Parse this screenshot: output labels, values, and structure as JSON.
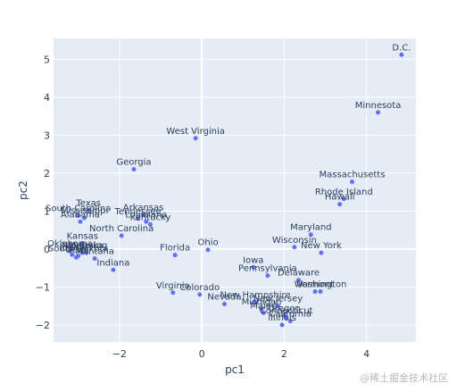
{
  "chart_data": {
    "type": "scatter",
    "xlabel": "pc1",
    "ylabel": "pc2",
    "xlim": [
      -3.6,
      5.2
    ],
    "ylim": [
      -2.45,
      5.55
    ],
    "x_ticks": [
      -2,
      0,
      2,
      4
    ],
    "y_ticks": [
      -2,
      -1,
      0,
      1,
      2,
      3,
      4,
      5
    ],
    "tick_labels_x": [
      "−2",
      "0",
      "2",
      "4"
    ],
    "tick_labels_y": [
      "−2",
      "−1",
      "0",
      "1",
      "2",
      "3",
      "4",
      "5"
    ],
    "grid": true,
    "colors": {
      "plot_bg": "#E5ECF6",
      "grid": "#ffffff",
      "marker": "#636EFA",
      "text": "#2A3F5F"
    },
    "points": [
      {
        "label": "D.C.",
        "x": 4.85,
        "y": 5.12
      },
      {
        "label": "Minnesota",
        "x": 4.28,
        "y": 3.6
      },
      {
        "label": "West Virginia",
        "x": -0.15,
        "y": 2.92
      },
      {
        "label": "Georgia",
        "x": -1.65,
        "y": 2.1
      },
      {
        "label": "Massachusetts",
        "x": 3.65,
        "y": 1.77
      },
      {
        "label": "Rhode Island",
        "x": 3.45,
        "y": 1.32
      },
      {
        "label": "Hawaii",
        "x": 3.35,
        "y": 1.18
      },
      {
        "label": "Texas",
        "x": -2.75,
        "y": 1.02
      },
      {
        "label": "South Carolina",
        "x": -3.0,
        "y": 0.88
      },
      {
        "label": "Mississippi",
        "x": -2.85,
        "y": 0.82
      },
      {
        "label": "Alabama",
        "x": -2.95,
        "y": 0.72
      },
      {
        "label": "Arkansas",
        "x": -1.42,
        "y": 0.9
      },
      {
        "label": "Tennessee",
        "x": -1.55,
        "y": 0.8
      },
      {
        "label": "Louisiana",
        "x": -1.35,
        "y": 0.72
      },
      {
        "label": "Kentucky",
        "x": -1.25,
        "y": 0.65
      },
      {
        "label": "North Carolina",
        "x": -1.95,
        "y": 0.35
      },
      {
        "label": "Maryland",
        "x": 2.65,
        "y": 0.38
      },
      {
        "label": "Kansas",
        "x": -2.9,
        "y": 0.15
      },
      {
        "label": "Wisconsin",
        "x": 2.25,
        "y": 0.05
      },
      {
        "label": "Ohio",
        "x": 0.15,
        "y": -0.02
      },
      {
        "label": "Oklahoma",
        "x": -3.2,
        "y": -0.05
      },
      {
        "label": "Nebraska",
        "x": -2.9,
        "y": -0.1
      },
      {
        "label": "Florida",
        "x": -0.65,
        "y": -0.16
      },
      {
        "label": "New York",
        "x": 2.9,
        "y": -0.1
      },
      {
        "label": "Idaho",
        "x": -3.15,
        "y": -0.15
      },
      {
        "label": "Wyoming",
        "x": -2.8,
        "y": -0.1
      },
      {
        "label": "South Dakota",
        "x": -3.0,
        "y": -0.18
      },
      {
        "label": "Montana",
        "x": -2.6,
        "y": -0.25
      },
      {
        "label": "Utah",
        "x": -3.05,
        "y": -0.22
      },
      {
        "label": "Indiana",
        "x": -2.15,
        "y": -0.55
      },
      {
        "label": "Iowa",
        "x": 1.25,
        "y": -0.48
      },
      {
        "label": "Pennsylvania",
        "x": 1.6,
        "y": -0.7
      },
      {
        "label": "Delaware",
        "x": 2.35,
        "y": -0.82
      },
      {
        "label": "Vermont",
        "x": 2.75,
        "y": -1.12
      },
      {
        "label": "Washington",
        "x": 2.88,
        "y": -1.12
      },
      {
        "label": "Virginia",
        "x": -0.7,
        "y": -1.15
      },
      {
        "label": "Colorado",
        "x": -0.05,
        "y": -1.2
      },
      {
        "label": "Nevada",
        "x": 0.55,
        "y": -1.45
      },
      {
        "label": "New Hampshire",
        "x": 1.3,
        "y": -1.4
      },
      {
        "label": "Michigan",
        "x": 1.45,
        "y": -1.58
      },
      {
        "label": "New Jersey",
        "x": 1.85,
        "y": -1.5
      },
      {
        "label": "Maine",
        "x": 1.5,
        "y": -1.68
      },
      {
        "label": "Oregon",
        "x": 2.0,
        "y": -1.75
      },
      {
        "label": "Connecticut",
        "x": 2.05,
        "y": -1.82
      },
      {
        "label": "California",
        "x": 2.15,
        "y": -1.9
      },
      {
        "label": "Illinois",
        "x": 1.95,
        "y": -2.0
      }
    ]
  },
  "watermark": "@稀土掘金技术社区"
}
